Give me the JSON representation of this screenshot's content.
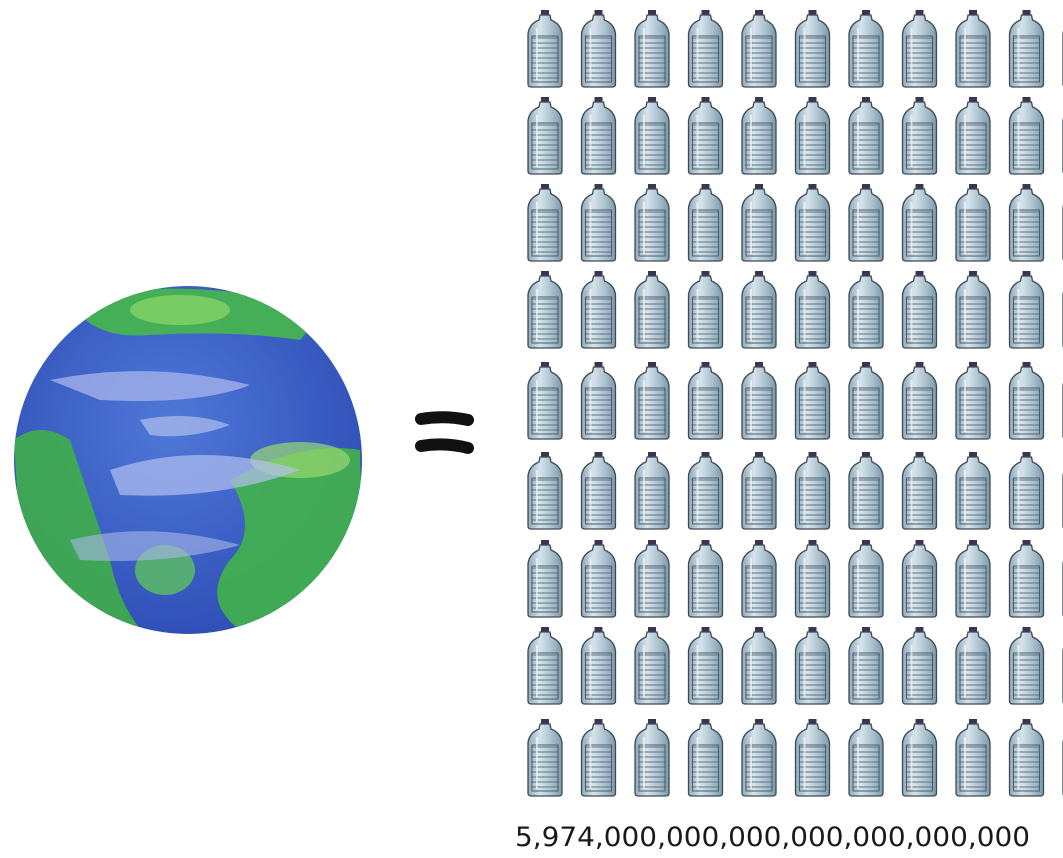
{
  "caption": "5,974,000,000,000,000,000,000,000"
}
